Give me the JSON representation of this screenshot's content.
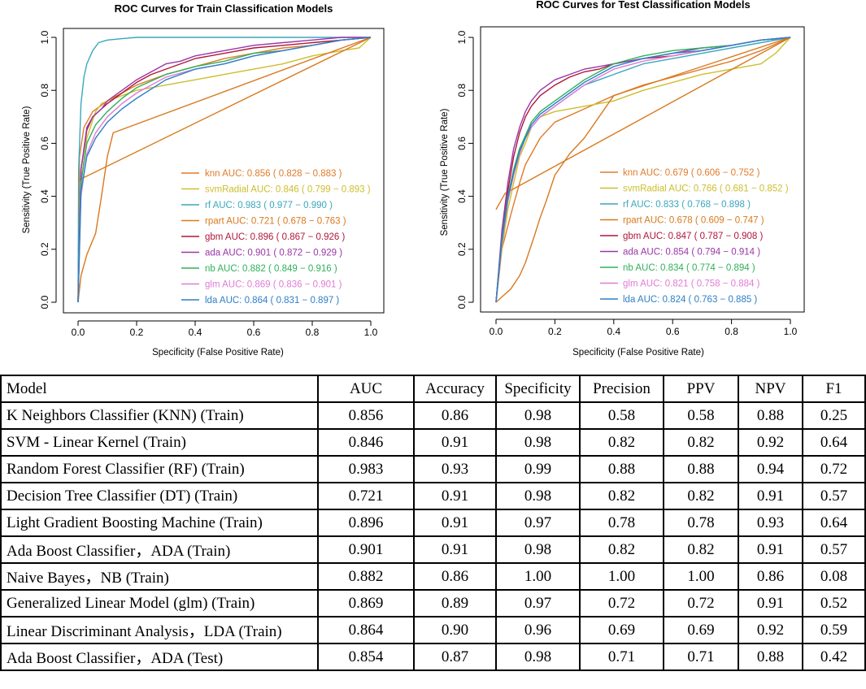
{
  "colors": {
    "knn": "#E07B2A",
    "svmRadial": "#CDBE2D",
    "rf": "#3AA7BD",
    "rpart": "#D9791E",
    "gbm": "#B0163A",
    "ada": "#9A36A8",
    "nb": "#2FB05A",
    "glm": "#E07BD6",
    "lda": "#2D7FC7"
  },
  "chart_data": [
    {
      "type": "line",
      "title": "ROC Curves for Train Classification Models",
      "xlabel": "Specificity (False Positive Rate)",
      "ylabel": "Sensitivity (True Positive Rate)",
      "xlim": [
        0,
        1
      ],
      "ylim": [
        0,
        1
      ],
      "ticks": [
        "0.0",
        "0.2",
        "0.4",
        "0.6",
        "0.8",
        "1.0"
      ],
      "legend_position": "bottom-right",
      "series": [
        {
          "key": "knn",
          "legend": "knn AUC: 0.856 ( 0.828 − 0.883 )",
          "x": [
            0,
            0.005,
            0.02,
            0.05,
            0.1,
            0.15,
            0.2,
            0.3,
            0.4,
            0.5,
            0.6,
            0.7,
            0.8,
            0.9,
            1
          ],
          "y": [
            0,
            0.55,
            0.66,
            0.72,
            0.76,
            0.79,
            0.82,
            0.86,
            0.89,
            0.92,
            0.94,
            0.96,
            0.97,
            0.99,
            1
          ]
        },
        {
          "key": "svmRadial",
          "legend": "svmRadial AUC: 0.846 ( 0.799 − 0.893 )",
          "x": [
            0,
            0.01,
            0.03,
            0.06,
            0.08,
            0.1,
            0.2,
            0.3,
            0.4,
            0.5,
            0.6,
            0.7,
            0.8,
            0.9,
            0.96,
            1
          ],
          "y": [
            0,
            0.45,
            0.62,
            0.72,
            0.75,
            0.76,
            0.8,
            0.82,
            0.84,
            0.86,
            0.88,
            0.9,
            0.93,
            0.95,
            0.96,
            1
          ]
        },
        {
          "key": "rf",
          "legend": "rf AUC: 0.983 ( 0.977 − 0.990 )",
          "x": [
            0,
            0.002,
            0.01,
            0.02,
            0.03,
            0.05,
            0.07,
            0.1,
            0.15,
            0.2,
            0.4,
            0.6,
            1
          ],
          "y": [
            0,
            0.5,
            0.75,
            0.85,
            0.9,
            0.95,
            0.98,
            0.99,
            0.995,
            1,
            1,
            1,
            1
          ]
        },
        {
          "key": "rpart",
          "legend": "rpart AUC: 0.721 ( 0.678 − 0.763 )",
          "x": [
            0,
            0.01,
            0.03,
            0.06,
            0.08,
            0.1,
            0.12,
            1
          ],
          "y": [
            0,
            0.1,
            0.18,
            0.26,
            0.4,
            0.55,
            0.64,
            1
          ]
        },
        {
          "key": "rpart_b",
          "legend": "",
          "x": [
            0,
            1
          ],
          "y": [
            0.46,
            1
          ]
        },
        {
          "key": "gbm",
          "legend": "gbm AUC: 0.896 ( 0.867 − 0.926 )",
          "x": [
            0,
            0.01,
            0.03,
            0.05,
            0.08,
            0.1,
            0.15,
            0.2,
            0.25,
            0.3,
            0.35,
            0.4,
            0.5,
            0.6,
            0.7,
            0.8,
            0.9,
            1
          ],
          "y": [
            0,
            0.5,
            0.65,
            0.7,
            0.73,
            0.75,
            0.79,
            0.83,
            0.86,
            0.88,
            0.9,
            0.92,
            0.94,
            0.96,
            0.97,
            0.98,
            0.99,
            1
          ]
        },
        {
          "key": "ada",
          "legend": "ada AUC: 0.901 ( 0.872 − 0.929 )",
          "x": [
            0,
            0.01,
            0.03,
            0.05,
            0.08,
            0.1,
            0.15,
            0.2,
            0.25,
            0.3,
            0.35,
            0.4,
            0.5,
            0.6,
            0.7,
            0.8,
            0.9,
            1
          ],
          "y": [
            0,
            0.5,
            0.66,
            0.7,
            0.73,
            0.76,
            0.8,
            0.84,
            0.87,
            0.9,
            0.91,
            0.93,
            0.95,
            0.97,
            0.98,
            0.99,
            1,
            1
          ]
        },
        {
          "key": "nb",
          "legend": "nb AUC: 0.882 ( 0.849 − 0.916 )",
          "x": [
            0,
            0.01,
            0.03,
            0.06,
            0.1,
            0.15,
            0.2,
            0.3,
            0.4,
            0.5,
            0.6,
            0.7,
            0.8,
            0.9,
            1
          ],
          "y": [
            0,
            0.45,
            0.6,
            0.67,
            0.72,
            0.77,
            0.81,
            0.86,
            0.89,
            0.91,
            0.94,
            0.95,
            0.97,
            0.99,
            1
          ]
        },
        {
          "key": "glm",
          "legend": "glm AUC: 0.869 ( 0.836 − 0.901 )",
          "x": [
            0,
            0.01,
            0.03,
            0.06,
            0.1,
            0.15,
            0.2,
            0.3,
            0.4,
            0.5,
            0.6,
            0.7,
            0.8,
            0.9,
            1
          ],
          "y": [
            0,
            0.4,
            0.56,
            0.64,
            0.7,
            0.75,
            0.79,
            0.85,
            0.88,
            0.9,
            0.93,
            0.95,
            0.97,
            0.99,
            1
          ]
        },
        {
          "key": "lda",
          "legend": "lda AUC: 0.864 ( 0.831 − 0.897 )",
          "x": [
            0,
            0.01,
            0.03,
            0.06,
            0.1,
            0.15,
            0.2,
            0.3,
            0.4,
            0.5,
            0.6,
            0.7,
            0.8,
            0.9,
            1
          ],
          "y": [
            0,
            0.42,
            0.55,
            0.62,
            0.68,
            0.73,
            0.77,
            0.84,
            0.88,
            0.9,
            0.93,
            0.95,
            0.97,
            0.99,
            1
          ]
        }
      ]
    },
    {
      "type": "line",
      "title": "ROC Curves for Test Classification Models",
      "xlabel": "Specificity (False Positive Rate)",
      "ylabel": "Sensitivity (True Positive Rate)",
      "xlim": [
        0,
        1
      ],
      "ylim": [
        0,
        1
      ],
      "ticks": [
        "0.0",
        "0.2",
        "0.4",
        "0.6",
        "0.8",
        "1.0"
      ],
      "legend_position": "bottom-right",
      "series": [
        {
          "key": "knn",
          "legend": "knn AUC: 0.679 ( 0.606 − 0.752 )",
          "x": [
            0,
            0.02,
            0.05,
            0.08,
            0.1,
            0.15,
            0.2,
            0.3,
            0.4,
            0.5,
            0.6,
            0.7,
            0.8,
            0.9,
            1
          ],
          "y": [
            0,
            0.2,
            0.33,
            0.45,
            0.52,
            0.62,
            0.68,
            0.73,
            0.78,
            0.82,
            0.85,
            0.88,
            0.91,
            0.95,
            1
          ]
        },
        {
          "key": "svmRadial",
          "legend": "svmRadial AUC: 0.766 ( 0.681 − 0.852 )",
          "x": [
            0,
            0.02,
            0.04,
            0.06,
            0.08,
            0.1,
            0.12,
            0.15,
            0.2,
            0.3,
            0.4,
            0.5,
            0.6,
            0.7,
            0.8,
            0.9,
            0.95,
            1
          ],
          "y": [
            0,
            0.2,
            0.35,
            0.45,
            0.55,
            0.6,
            0.66,
            0.7,
            0.72,
            0.74,
            0.76,
            0.8,
            0.83,
            0.86,
            0.88,
            0.9,
            0.94,
            1
          ]
        },
        {
          "key": "rf",
          "legend": "rf AUC: 0.833 ( 0.768 − 0.898 )",
          "x": [
            0,
            0.02,
            0.04,
            0.06,
            0.08,
            0.1,
            0.12,
            0.15,
            0.2,
            0.25,
            0.3,
            0.35,
            0.4,
            0.5,
            0.6,
            0.7,
            0.8,
            0.9,
            1
          ],
          "y": [
            0,
            0.25,
            0.4,
            0.5,
            0.58,
            0.62,
            0.66,
            0.7,
            0.74,
            0.78,
            0.82,
            0.84,
            0.86,
            0.9,
            0.92,
            0.94,
            0.96,
            0.98,
            1
          ]
        },
        {
          "key": "rpart",
          "legend": "rpart AUC: 0.678 ( 0.609 − 0.747 )",
          "x": [
            0,
            0.02,
            0.05,
            0.08,
            0.1,
            0.13,
            0.15,
            0.17,
            0.2,
            0.25,
            0.3,
            0.35,
            0.4,
            1
          ],
          "y": [
            0,
            0.02,
            0.05,
            0.1,
            0.15,
            0.25,
            0.32,
            0.38,
            0.48,
            0.56,
            0.62,
            0.7,
            0.78,
            1
          ]
        },
        {
          "key": "rpart_b",
          "legend": "",
          "x": [
            0,
            0.03,
            1
          ],
          "y": [
            0.35,
            0.41,
            1
          ]
        },
        {
          "key": "gbm",
          "legend": "gbm AUC: 0.847 ( 0.787 − 0.908 )",
          "x": [
            0,
            0.02,
            0.04,
            0.06,
            0.08,
            0.1,
            0.12,
            0.15,
            0.2,
            0.25,
            0.3,
            0.35,
            0.4,
            0.5,
            0.6,
            0.7,
            0.8,
            0.9,
            1
          ],
          "y": [
            0,
            0.25,
            0.42,
            0.55,
            0.64,
            0.7,
            0.74,
            0.78,
            0.82,
            0.85,
            0.87,
            0.88,
            0.9,
            0.92,
            0.93,
            0.95,
            0.97,
            0.99,
            1
          ]
        },
        {
          "key": "ada",
          "legend": "ada AUC: 0.854 ( 0.794 − 0.914 )",
          "x": [
            0,
            0.02,
            0.04,
            0.06,
            0.08,
            0.1,
            0.12,
            0.15,
            0.2,
            0.25,
            0.3,
            0.35,
            0.4,
            0.5,
            0.6,
            0.7,
            0.8,
            0.9,
            1
          ],
          "y": [
            0,
            0.27,
            0.45,
            0.58,
            0.66,
            0.72,
            0.76,
            0.8,
            0.84,
            0.86,
            0.88,
            0.89,
            0.9,
            0.92,
            0.94,
            0.96,
            0.97,
            0.99,
            1
          ]
        },
        {
          "key": "nb",
          "legend": "nb AUC: 0.834 ( 0.774 − 0.894 )",
          "x": [
            0,
            0.02,
            0.04,
            0.06,
            0.08,
            0.1,
            0.12,
            0.15,
            0.2,
            0.25,
            0.3,
            0.35,
            0.4,
            0.5,
            0.6,
            0.7,
            0.8,
            0.9,
            1
          ],
          "y": [
            0,
            0.24,
            0.4,
            0.5,
            0.58,
            0.63,
            0.68,
            0.72,
            0.76,
            0.8,
            0.84,
            0.87,
            0.9,
            0.93,
            0.95,
            0.96,
            0.97,
            0.99,
            1
          ]
        },
        {
          "key": "glm",
          "legend": "glm AUC: 0.821 ( 0.758 − 0.884 )",
          "x": [
            0,
            0.02,
            0.04,
            0.06,
            0.08,
            0.1,
            0.12,
            0.15,
            0.2,
            0.25,
            0.3,
            0.35,
            0.4,
            0.5,
            0.6,
            0.7,
            0.8,
            0.9,
            1
          ],
          "y": [
            0,
            0.22,
            0.38,
            0.48,
            0.56,
            0.62,
            0.66,
            0.7,
            0.74,
            0.78,
            0.82,
            0.85,
            0.88,
            0.91,
            0.93,
            0.95,
            0.97,
            0.99,
            1
          ]
        },
        {
          "key": "lda",
          "legend": "lda AUC: 0.824 ( 0.763 − 0.885 )",
          "x": [
            0,
            0.02,
            0.04,
            0.06,
            0.08,
            0.1,
            0.12,
            0.15,
            0.2,
            0.25,
            0.3,
            0.35,
            0.4,
            0.5,
            0.6,
            0.7,
            0.8,
            0.9,
            1
          ],
          "y": [
            0,
            0.23,
            0.39,
            0.49,
            0.57,
            0.62,
            0.67,
            0.71,
            0.75,
            0.79,
            0.83,
            0.86,
            0.89,
            0.92,
            0.94,
            0.95,
            0.97,
            0.99,
            1
          ]
        }
      ]
    }
  ],
  "table": {
    "headers": [
      "Model",
      "AUC",
      "Accuracy",
      "Specificity",
      "Precision",
      "PPV",
      "NPV",
      "F1"
    ],
    "rows": [
      [
        "K Neighbors Classifier (KNN) (Train)",
        "0.856",
        "0.86",
        "0.98",
        "0.58",
        "0.58",
        "0.88",
        "0.25"
      ],
      [
        "SVM - Linear Kernel (Train)",
        "0.846",
        "0.91",
        "0.98",
        "0.82",
        "0.82",
        "0.92",
        "0.64"
      ],
      [
        "Random Forest Classifier (RF) (Train)",
        "0.983",
        "0.93",
        "0.99",
        "0.88",
        "0.88",
        "0.94",
        "0.72"
      ],
      [
        "Decision Tree Classifier (DT) (Train)",
        "0.721",
        "0.91",
        "0.98",
        "0.82",
        "0.82",
        "0.91",
        "0.57"
      ],
      [
        "Light Gradient Boosting Machine (Train)",
        "0.896",
        "0.91",
        "0.97",
        "0.78",
        "0.78",
        "0.93",
        "0.64"
      ],
      [
        "Ada Boost Classifier，ADA (Train)",
        "0.901",
        "0.91",
        "0.98",
        "0.82",
        "0.82",
        "0.91",
        "0.57"
      ],
      [
        "Naive Bayes，NB (Train)",
        "0.882",
        "0.86",
        "1.00",
        "1.00",
        "1.00",
        "0.86",
        "0.08"
      ],
      [
        "Generalized Linear Model (glm) (Train)",
        "0.869",
        "0.89",
        "0.97",
        "0.72",
        "0.72",
        "0.91",
        "0.52"
      ],
      [
        "Linear Discriminant Analysis，LDA (Train)",
        "0.864",
        "0.90",
        "0.96",
        "0.69",
        "0.69",
        "0.92",
        "0.59"
      ],
      [
        "Ada Boost Classifier，ADA (Test)",
        "0.854",
        "0.87",
        "0.98",
        "0.71",
        "0.71",
        "0.88",
        "0.42"
      ]
    ]
  }
}
